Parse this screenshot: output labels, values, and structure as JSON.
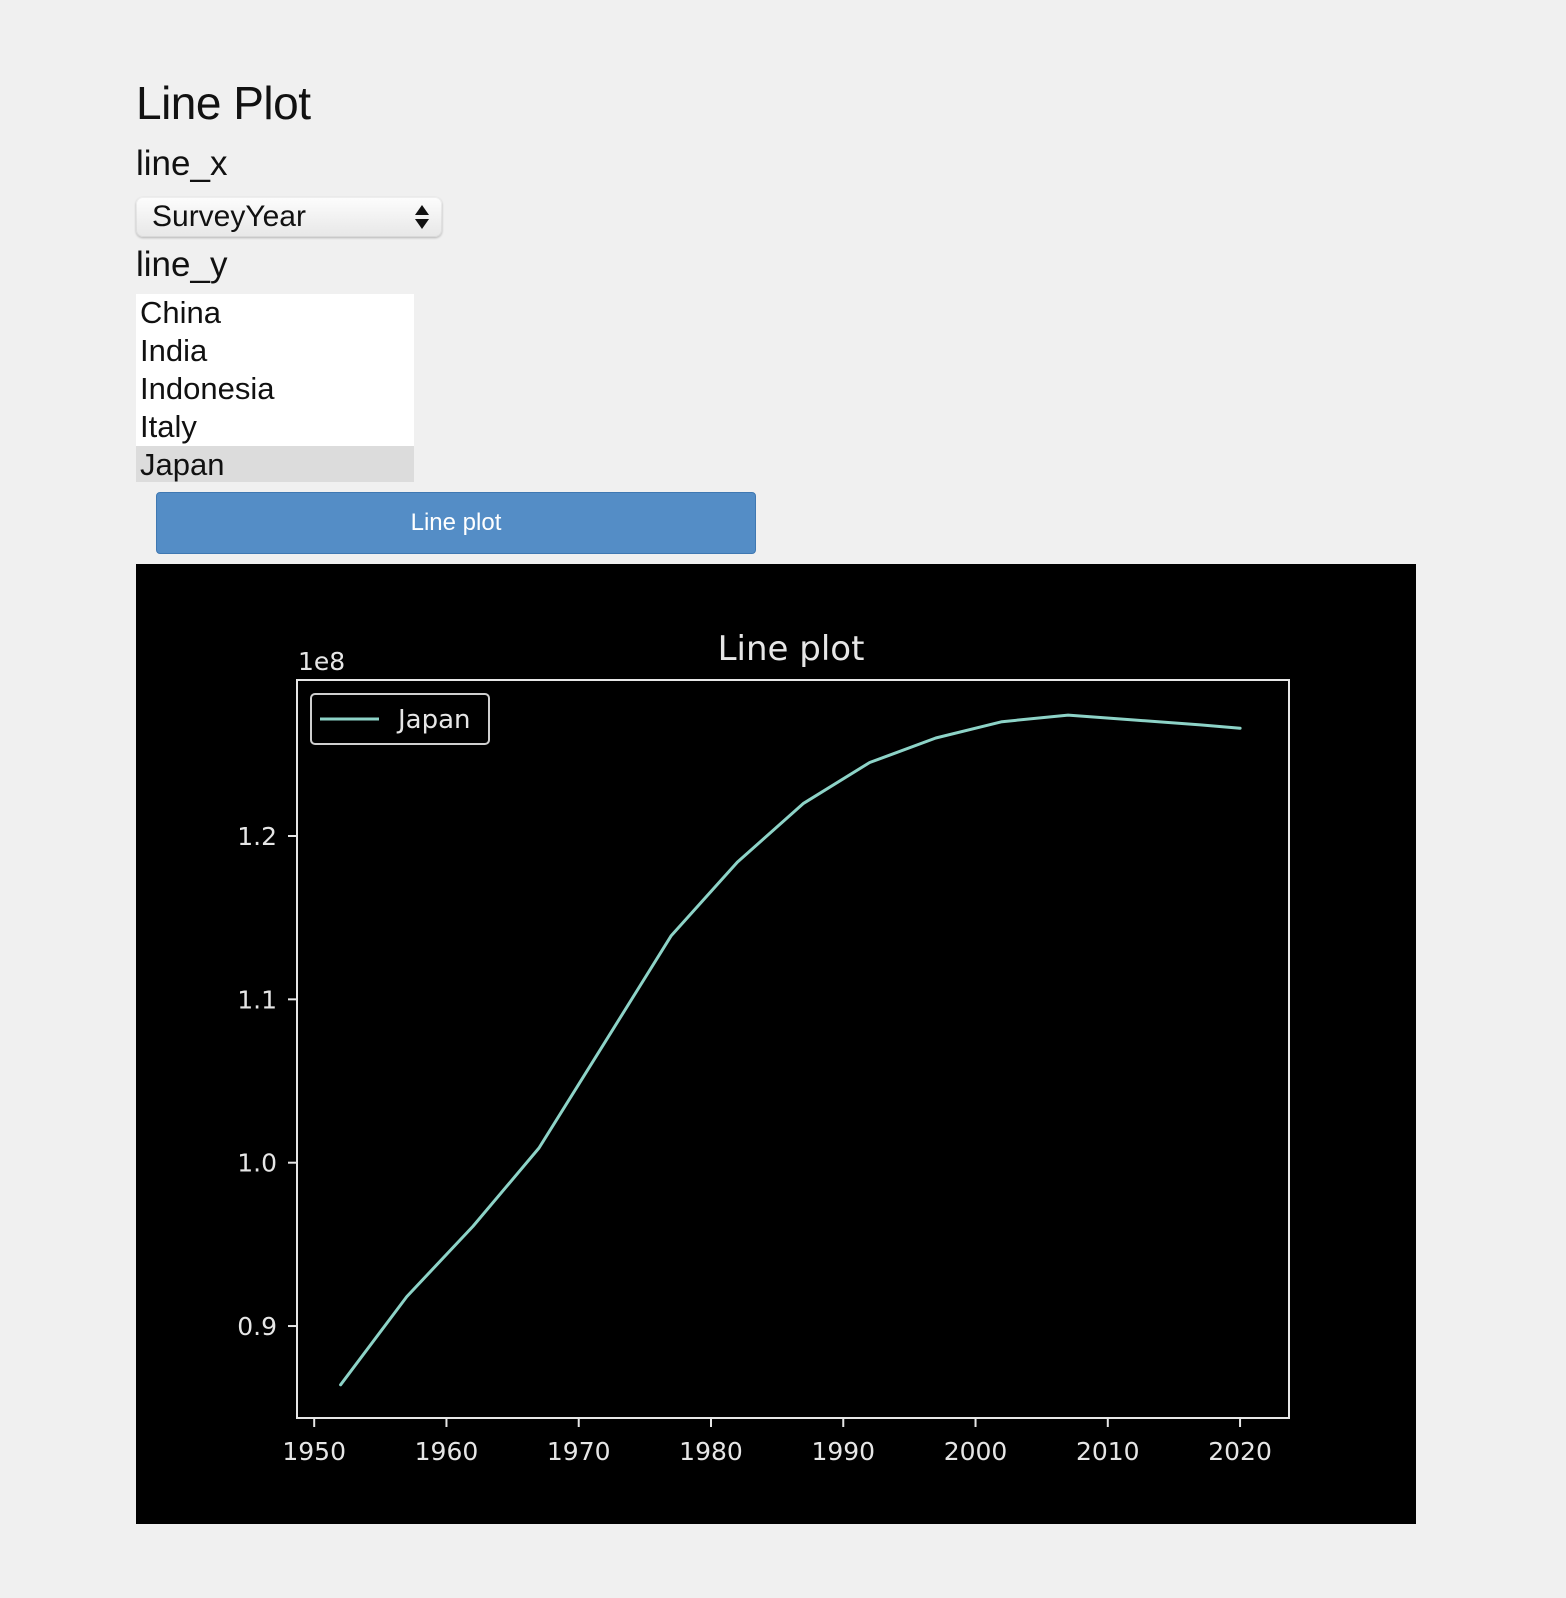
{
  "page": {
    "title": "Line Plot"
  },
  "form": {
    "line_x_label": "line_x",
    "line_x_value": "SurveyYear",
    "line_y_label": "line_y",
    "line_y_options": [
      "China",
      "India",
      "Indonesia",
      "Italy",
      "Japan"
    ],
    "line_y_selected": "Japan",
    "button_label": "Line plot"
  },
  "chart_data": {
    "type": "line",
    "title": "Line plot",
    "xlabel": "",
    "ylabel": "",
    "y_multiplier_label": "1e8",
    "x_ticks": [
      "1950",
      "1960",
      "1970",
      "1980",
      "1990",
      "2000",
      "2010",
      "2020"
    ],
    "y_ticks": [
      "0.9",
      "1.0",
      "1.1",
      "1.2"
    ],
    "xlim": [
      1948.7,
      2023.7
    ],
    "ylim": [
      0.8437,
      1.2955
    ],
    "legend_position": "top-left",
    "grid": false,
    "background": "#000000",
    "series": [
      {
        "name": "Japan",
        "color": "#8dd3c7",
        "x": [
          1952,
          1957,
          1962,
          1967,
          1972,
          1977,
          1982,
          1987,
          1992,
          1997,
          2002,
          2007,
          2012,
          2017,
          2020
        ],
        "y": [
          0.864,
          0.918,
          0.961,
          1.009,
          1.074,
          1.139,
          1.184,
          1.22,
          1.245,
          1.26,
          1.27,
          1.274,
          1.271,
          1.268,
          1.266
        ]
      }
    ]
  }
}
